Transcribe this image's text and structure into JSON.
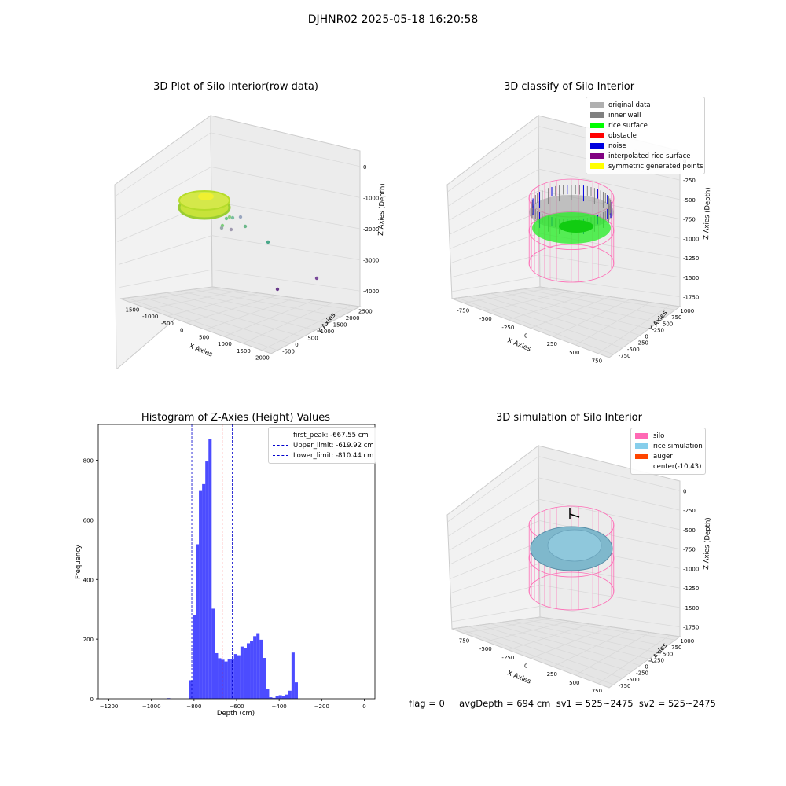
{
  "suptitle": "DJHNR02 2025-05-18 16:20:58",
  "footer": "flag = 0     avgDepth = 694 cm  sv1 = 525~2475  sv2 = 525~2475",
  "panels": {
    "raw": {
      "title": "3D Plot of Silo Interior(row data)",
      "xlabel": "X Axies",
      "ylabel": "Y Axies",
      "zlabel": "Z Axies (Depth)",
      "xticks": [
        "-1500",
        "-1000",
        "-500",
        "0",
        "500",
        "1000",
        "1500",
        "2000"
      ],
      "yticks": [
        "-500",
        "0",
        "500",
        "1000",
        "1500",
        "2000",
        "2500"
      ],
      "zticks": [
        "0",
        "-1000",
        "-2000",
        "-3000",
        "-4000"
      ]
    },
    "classify": {
      "title": "3D classify of Silo Interior",
      "xlabel": "X Axies",
      "ylabel": "Y Axies",
      "zlabel": "Z Axies (Depth)",
      "xticks": [
        "-750",
        "-500",
        "-250",
        "0",
        "250",
        "500",
        "750"
      ],
      "yticks": [
        "-750",
        "-500",
        "-250",
        "0",
        "250",
        "500",
        "750",
        "1000"
      ],
      "zticks": [
        "0",
        "-250",
        "-500",
        "-750",
        "-1000",
        "-1250",
        "-1500",
        "-1750"
      ],
      "legend": [
        {
          "label": "original data",
          "color": "#b0b0b0"
        },
        {
          "label": "inner wall",
          "color": "#808080"
        },
        {
          "label": "rice surface",
          "color": "#00ff00"
        },
        {
          "label": "obstacle",
          "color": "#ff0000"
        },
        {
          "label": "noise",
          "color": "#0000dd"
        },
        {
          "label": "interpolated rice surface",
          "color": "#800080"
        },
        {
          "label": "symmetric generated points",
          "color": "#ffff00"
        }
      ]
    },
    "simulation": {
      "title": "3D simulation of Silo Interior",
      "xlabel": "X Axies",
      "ylabel": "Y Axies",
      "zlabel": "Z Axies (Depth)",
      "xticks": [
        "-750",
        "-500",
        "-250",
        "0",
        "250",
        "500",
        "750"
      ],
      "yticks": [
        "-750",
        "-500",
        "-250",
        "0",
        "250",
        "500",
        "750",
        "1000"
      ],
      "zticks": [
        "0",
        "-250",
        "-500",
        "-750",
        "-1000",
        "-1250",
        "-1500",
        "-1750"
      ],
      "legend": [
        {
          "label": "silo",
          "color": "#ff69b4"
        },
        {
          "label": "rice simulation",
          "color": "#87ceeb"
        },
        {
          "label": "auger",
          "color": "#ff4500"
        },
        {
          "label": "center(-10,43)",
          "color": ""
        }
      ]
    }
  },
  "chart_data": {
    "type": "bar",
    "title": "Histogram of Z-Axies (Height) Values",
    "xlabel": "Depth (cm)",
    "ylabel": "Frequency",
    "xlim": [
      -1250,
      50
    ],
    "ylim": [
      0,
      920
    ],
    "xticks": [
      -1200,
      -1000,
      -800,
      -600,
      -400,
      -200,
      0
    ],
    "yticks": [
      0,
      200,
      400,
      600,
      800
    ],
    "bar_color": "#0000ff",
    "bins": [
      {
        "x0": -927,
        "x1": -912,
        "count": 2
      },
      {
        "x0": -822,
        "x1": -807,
        "count": 62
      },
      {
        "x0": -807,
        "x1": -792,
        "count": 282
      },
      {
        "x0": -792,
        "x1": -777,
        "count": 518
      },
      {
        "x0": -777,
        "x1": -762,
        "count": 697
      },
      {
        "x0": -762,
        "x1": -747,
        "count": 720
      },
      {
        "x0": -747,
        "x1": -732,
        "count": 796
      },
      {
        "x0": -732,
        "x1": -717,
        "count": 872
      },
      {
        "x0": -717,
        "x1": -702,
        "count": 302
      },
      {
        "x0": -702,
        "x1": -687,
        "count": 153
      },
      {
        "x0": -687,
        "x1": -672,
        "count": 136
      },
      {
        "x0": -672,
        "x1": -657,
        "count": 131
      },
      {
        "x0": -657,
        "x1": -642,
        "count": 125
      },
      {
        "x0": -642,
        "x1": -627,
        "count": 132
      },
      {
        "x0": -627,
        "x1": -612,
        "count": 133
      },
      {
        "x0": -612,
        "x1": -597,
        "count": 150
      },
      {
        "x0": -597,
        "x1": -582,
        "count": 146
      },
      {
        "x0": -582,
        "x1": -567,
        "count": 175
      },
      {
        "x0": -567,
        "x1": -552,
        "count": 170
      },
      {
        "x0": -552,
        "x1": -537,
        "count": 186
      },
      {
        "x0": -537,
        "x1": -522,
        "count": 193
      },
      {
        "x0": -522,
        "x1": -507,
        "count": 210
      },
      {
        "x0": -507,
        "x1": -492,
        "count": 220
      },
      {
        "x0": -492,
        "x1": -477,
        "count": 198
      },
      {
        "x0": -477,
        "x1": -462,
        "count": 137
      },
      {
        "x0": -462,
        "x1": -447,
        "count": 33
      },
      {
        "x0": -447,
        "x1": -432,
        "count": 5
      },
      {
        "x0": -432,
        "x1": -417,
        "count": 3
      },
      {
        "x0": -417,
        "x1": -402,
        "count": 8
      },
      {
        "x0": -402,
        "x1": -387,
        "count": 12
      },
      {
        "x0": -387,
        "x1": -372,
        "count": 9
      },
      {
        "x0": -372,
        "x1": -357,
        "count": 14
      },
      {
        "x0": -357,
        "x1": -342,
        "count": 27
      },
      {
        "x0": -342,
        "x1": -327,
        "count": 155
      },
      {
        "x0": -327,
        "x1": -312,
        "count": 55
      }
    ],
    "vlines": [
      {
        "label": "first_peak: -667.55 cm",
        "x": -667.55,
        "color": "#ff0000"
      },
      {
        "label": "Upper_limit: -619.92 cm",
        "x": -619.92,
        "color": "#0000cc"
      },
      {
        "label": "Lower_limit: -810.44 cm",
        "x": -810.44,
        "color": "#0000cc"
      }
    ]
  }
}
